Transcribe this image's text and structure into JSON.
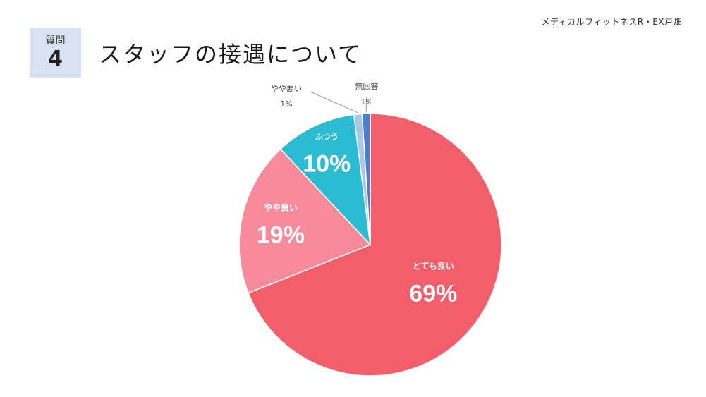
{
  "header": {
    "brand": "メディカルフィットネスR・EX戸畑",
    "question_label": "質問",
    "question_number": "4",
    "title": "スタッフの接遇について"
  },
  "chart_data": {
    "type": "pie",
    "title": "スタッフの接遇について",
    "start_angle_deg": 0,
    "direction": "clockwise",
    "slices": [
      {
        "label": "とても良い",
        "value": 69,
        "value_label": "69%",
        "color": "#f25f6b"
      },
      {
        "label": "やや良い",
        "value": 19,
        "value_label": "19%",
        "color": "#f78b9b"
      },
      {
        "label": "ふつう",
        "value": 10,
        "value_label": "10%",
        "color": "#2bbcd4"
      },
      {
        "label": "やや悪い",
        "value": 1,
        "value_label": "1%",
        "color": "#a9c7e6"
      },
      {
        "label": "無回答",
        "value": 1,
        "value_label": "1%",
        "color": "#4a7ed0"
      }
    ]
  }
}
